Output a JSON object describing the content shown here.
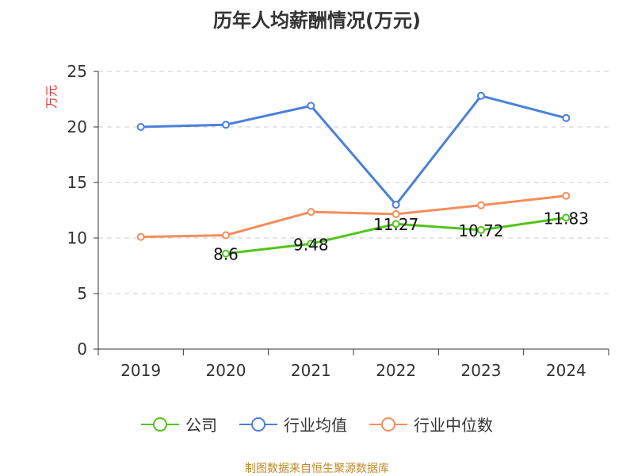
{
  "chart_data": {
    "type": "line",
    "title": "历年人均薪酬情况(万元)",
    "ylabel": "万元",
    "xlabel": "",
    "categories": [
      "2019",
      "2020",
      "2021",
      "2022",
      "2023",
      "2024"
    ],
    "ylim": [
      0,
      25
    ],
    "yticks": [
      0,
      5,
      10,
      15,
      20,
      25
    ],
    "grid": "horizontal dashed",
    "legend_position": "bottom",
    "series": [
      {
        "name": "公司",
        "color": "#52c41a",
        "values": [
          null,
          8.6,
          9.48,
          11.27,
          10.72,
          11.83
        ],
        "labels": [
          null,
          "8.6",
          "9.48",
          "11.27",
          "10.72",
          "11.83"
        ]
      },
      {
        "name": "行业均值",
        "color": "#4a7fdc",
        "values": [
          20.0,
          20.2,
          21.9,
          13.0,
          22.8,
          20.8
        ]
      },
      {
        "name": "行业中位数",
        "color": "#f58d5c",
        "values": [
          10.1,
          10.25,
          12.35,
          12.15,
          12.95,
          13.8
        ]
      }
    ]
  },
  "footer": {
    "source": "制图数据来自恒生聚源数据库"
  }
}
